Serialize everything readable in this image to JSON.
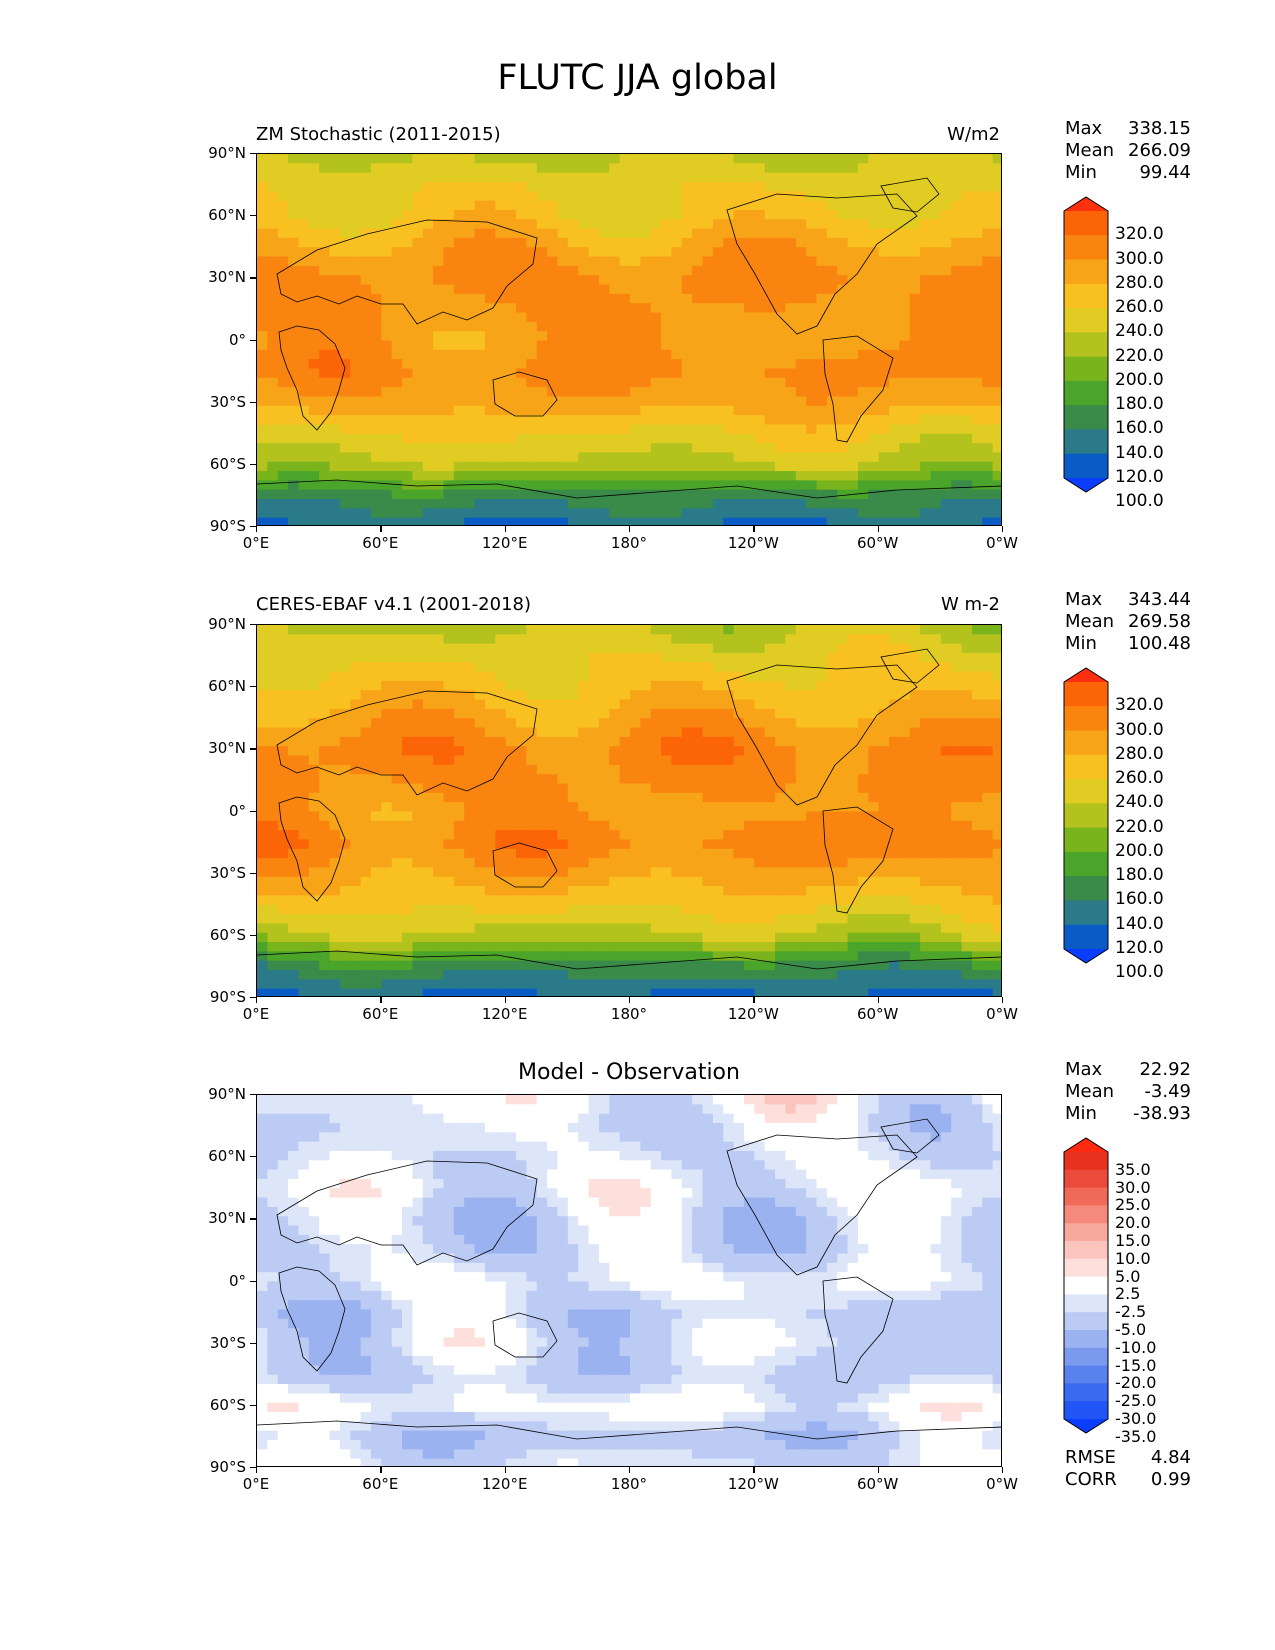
{
  "figure": {
    "title": "FLUTC JJA global"
  },
  "x_ticks": [
    "0°E",
    "60°E",
    "120°E",
    "180°",
    "120°W",
    "60°W",
    "0°W"
  ],
  "y_ticks": [
    "90°N",
    "60°N",
    "30°N",
    "0°",
    "30°S",
    "60°S",
    "90°S"
  ],
  "panels": [
    {
      "left_title": "ZM Stochastic (2011-2015)",
      "right_title": "W/m2",
      "center_title": "",
      "stats": [
        {
          "label": "Max",
          "value": "338.15"
        },
        {
          "label": "Mean",
          "value": "266.09"
        },
        {
          "label": "Min",
          "value": "99.44"
        }
      ],
      "colorbar_labels": [
        "320.0",
        "300.0",
        "280.0",
        "260.0",
        "240.0",
        "220.0",
        "200.0",
        "180.0",
        "160.0",
        "140.0",
        "120.0",
        "100.0"
      ]
    },
    {
      "left_title": "CERES-EBAF v4.1 (2001-2018)",
      "right_title": "W m-2",
      "center_title": "",
      "stats": [
        {
          "label": "Max",
          "value": "343.44"
        },
        {
          "label": "Mean",
          "value": "269.58"
        },
        {
          "label": "Min",
          "value": "100.48"
        }
      ],
      "colorbar_labels": [
        "320.0",
        "300.0",
        "280.0",
        "260.0",
        "240.0",
        "220.0",
        "200.0",
        "180.0",
        "160.0",
        "140.0",
        "120.0",
        "100.0"
      ]
    },
    {
      "left_title": "",
      "right_title": "",
      "center_title": "Model - Observation",
      "stats": [
        {
          "label": "Max",
          "value": "22.92"
        },
        {
          "label": "Mean",
          "value": "-3.49"
        },
        {
          "label": "Min",
          "value": "-38.93"
        }
      ],
      "colorbar_labels": [
        "35.0",
        "30.0",
        "25.0",
        "20.0",
        "15.0",
        "10.0",
        "5.0",
        "2.5",
        "-2.5",
        "-5.0",
        "-10.0",
        "-15.0",
        "-20.0",
        "-25.0",
        "-30.0",
        "-35.0"
      ],
      "bottom_stats": [
        {
          "label": "RMSE",
          "value": "4.84"
        },
        {
          "label": "CORR",
          "value": "0.99"
        }
      ]
    }
  ],
  "chart_data": [
    {
      "type": "heatmap",
      "title": "ZM Stochastic (2011-2015)",
      "units": "W/m2",
      "xlim": [
        0,
        360
      ],
      "ylim": [
        -90,
        90
      ],
      "levels": [
        100,
        120,
        140,
        160,
        180,
        200,
        220,
        240,
        260,
        280,
        300,
        320
      ],
      "colors": [
        "#0b3dff",
        "#0a5bc4",
        "#2a7a8a",
        "#3a8a4a",
        "#4aa52a",
        "#7ab41c",
        "#b4c21e",
        "#e0cc22",
        "#f8c020",
        "#f8a418",
        "#fa8410",
        "#fc6408",
        "#ff3010"
      ],
      "zonal_profile": {
        "lat": [
          90,
          75,
          60,
          45,
          30,
          15,
          0,
          -15,
          -30,
          -45,
          -60,
          -75,
          -90
        ],
        "value": [
          215,
          235,
          245,
          270,
          285,
          280,
          275,
          285,
          270,
          240,
          215,
          150,
          120
        ]
      },
      "max": 338.15,
      "mean": 266.09,
      "min": 99.44
    },
    {
      "type": "heatmap",
      "title": "CERES-EBAF v4.1 (2001-2018)",
      "units": "W m-2",
      "xlim": [
        0,
        360
      ],
      "ylim": [
        -90,
        90
      ],
      "levels": [
        100,
        120,
        140,
        160,
        180,
        200,
        220,
        240,
        260,
        280,
        300,
        320
      ],
      "colors": [
        "#0b3dff",
        "#0a5bc4",
        "#2a7a8a",
        "#3a8a4a",
        "#4aa52a",
        "#7ab41c",
        "#b4c21e",
        "#e0cc22",
        "#f8c020",
        "#f8a418",
        "#fa8410",
        "#fc6408",
        "#ff3010"
      ],
      "zonal_profile": {
        "lat": [
          90,
          75,
          60,
          45,
          30,
          15,
          0,
          -15,
          -30,
          -45,
          -60,
          -75,
          -90
        ],
        "value": [
          215,
          235,
          250,
          270,
          290,
          285,
          275,
          290,
          270,
          245,
          215,
          150,
          115
        ]
      },
      "max": 343.44,
      "mean": 269.58,
      "min": 100.48
    },
    {
      "type": "heatmap",
      "title": "Model - Observation",
      "xlim": [
        0,
        360
      ],
      "ylim": [
        -90,
        90
      ],
      "levels": [
        -35,
        -30,
        -25,
        -20,
        -15,
        -10,
        -5,
        -2.5,
        2.5,
        5,
        10,
        15,
        20,
        25,
        30,
        35
      ],
      "colors": [
        "#0b3dff",
        "#2255f5",
        "#3a6af0",
        "#5a82ee",
        "#7a9aee",
        "#9ab2f0",
        "#bccbf4",
        "#dde5f8",
        "#ffffff",
        "#fde0dc",
        "#fbc4bc",
        "#f8a89c",
        "#f58a7c",
        "#f06a5a",
        "#ec4a3a",
        "#e8321e",
        "#ff2a10"
      ],
      "zonal_profile": {
        "lat": [
          90,
          75,
          60,
          45,
          30,
          15,
          0,
          -15,
          -30,
          -45,
          -60,
          -75,
          -90
        ],
        "value": [
          -1,
          -4,
          -4,
          -2,
          -6,
          -6,
          -2,
          -6,
          -4,
          -7,
          -1,
          -8,
          -4
        ]
      },
      "max": 22.92,
      "mean": -3.49,
      "min": -38.93,
      "rmse": 4.84,
      "corr": 0.99
    }
  ]
}
